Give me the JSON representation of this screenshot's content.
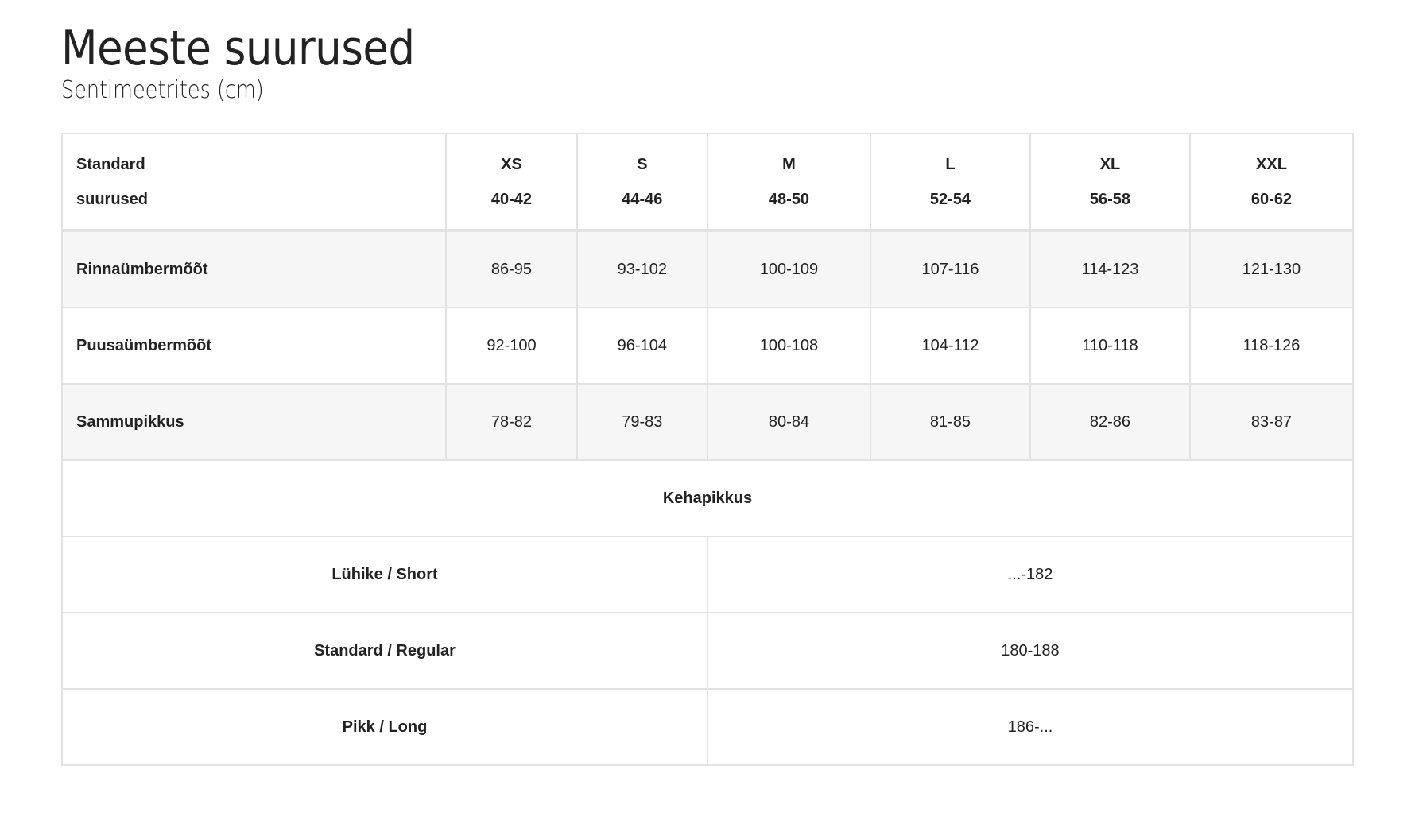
{
  "title": "Meeste suurused",
  "subtitle": "Sentimeetrites (cm)",
  "table": {
    "corner": [
      "Standard",
      "suurused"
    ],
    "sizes": [
      {
        "label": "XS",
        "range": "40-42"
      },
      {
        "label": "S",
        "range": "44-46"
      },
      {
        "label": "M",
        "range": "48-50"
      },
      {
        "label": "L",
        "range": "52-54"
      },
      {
        "label": "XL",
        "range": "56-58"
      },
      {
        "label": "XXL",
        "range": "60-62"
      }
    ],
    "rows": [
      {
        "label": "Rinnaümbermõõt",
        "values": [
          "86-95",
          "93-102",
          "100-109",
          "107-116",
          "114-123",
          "121-130"
        ]
      },
      {
        "label": "Puusaümbermõõt",
        "values": [
          "92-100",
          "96-104",
          "100-108",
          "104-112",
          "110-118",
          "118-126"
        ]
      },
      {
        "label": "Sammupikkus",
        "values": [
          "78-82",
          "79-83",
          "80-84",
          "81-85",
          "82-86",
          "83-87"
        ]
      }
    ],
    "height_title": "Kehapikkus",
    "heights": [
      {
        "label": "Lühike / Short",
        "value": "...-182"
      },
      {
        "label": "Standard / Regular",
        "value": "180-188"
      },
      {
        "label": "Pikk / Long",
        "value": "186-..."
      }
    ]
  }
}
